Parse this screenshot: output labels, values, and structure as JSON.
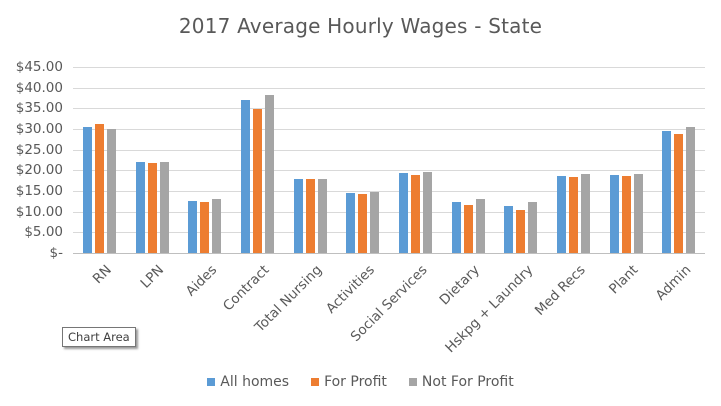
{
  "chart_data": {
    "type": "bar",
    "title": "2017 Average Hourly Wages - State",
    "xlabel": "",
    "ylabel": "",
    "ylim": [
      0,
      45
    ],
    "yticks": [
      "$-",
      "$5.00",
      "$10.00",
      "$15.00",
      "$20.00",
      "$25.00",
      "$30.00",
      "$35.00",
      "$40.00",
      "$45.00"
    ],
    "ytick_values": [
      0,
      5,
      10,
      15,
      20,
      25,
      30,
      35,
      40,
      45
    ],
    "grid": true,
    "legend_position": "bottom",
    "categories": [
      "RN",
      "LPN",
      "Aides",
      "Contract",
      "Total Nursing",
      "Activities",
      "Social Services",
      "Dietary",
      "Hskpg + Laundry",
      "Med Recs",
      "Plant",
      "Admin"
    ],
    "series": [
      {
        "name": "All homes",
        "color": "#5B9BD5",
        "values": [
          30.4,
          22.0,
          12.5,
          37.0,
          17.9,
          14.6,
          19.3,
          12.3,
          11.4,
          18.6,
          18.9,
          29.6
        ]
      },
      {
        "name": "For Profit",
        "color": "#ED7D31",
        "values": [
          31.1,
          21.8,
          12.3,
          34.8,
          17.9,
          14.3,
          18.9,
          11.6,
          10.4,
          18.4,
          18.6,
          28.9
        ]
      },
      {
        "name": "Not For Profit",
        "color": "#A5A5A5",
        "values": [
          29.9,
          22.0,
          13.1,
          38.2,
          17.9,
          14.8,
          19.6,
          13.1,
          12.3,
          19.1,
          19.1,
          30.5
        ]
      }
    ]
  },
  "tooltip": {
    "label": "Chart Area"
  }
}
